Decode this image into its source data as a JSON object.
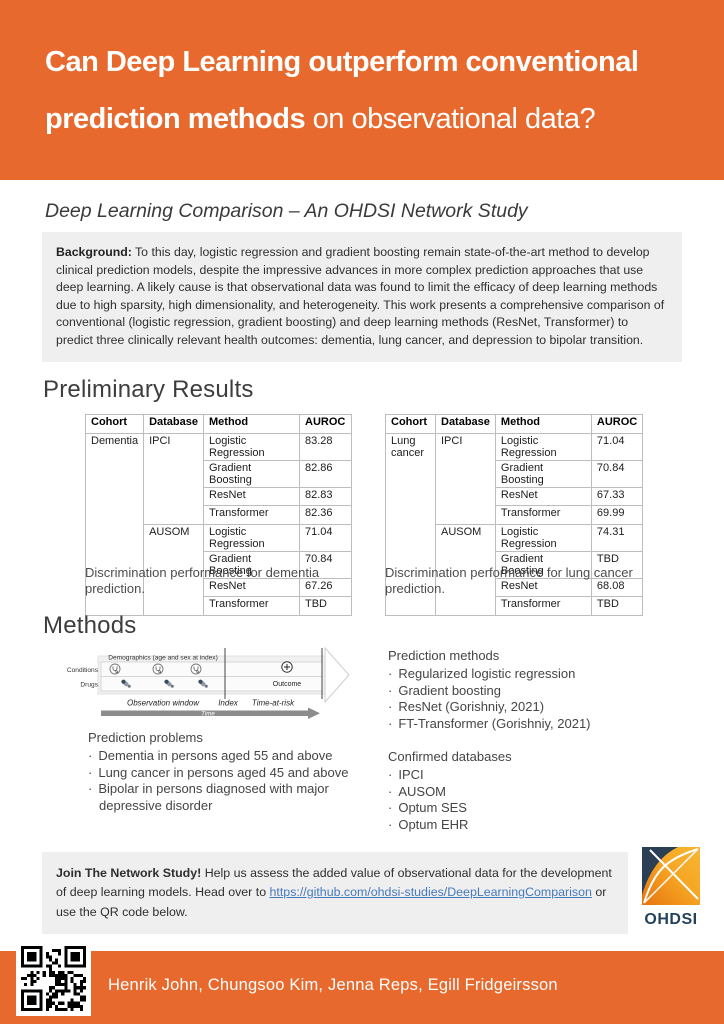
{
  "header": {
    "title_line1": "Can Deep Learning outperform conventional",
    "title_line2_bold": "prediction methods",
    "title_line2_rest": " on observational data?"
  },
  "subtitle": "Deep Learning Comparison – An OHDSI Network Study",
  "background": {
    "label": "Background:",
    "text": " To this day, logistic regression and gradient boosting remain state-of-the-art method to develop clinical prediction models, despite the impressive advances in more complex prediction approaches that use deep learning. A likely cause is that observational data was found to limit the efficacy of deep learning methods due to high sparsity, high dimensionality, and heterogeneity. This work presents a comprehensive comparison of conventional (logistic regression, gradient boosting) and deep learning methods (ResNet, Transformer) to predict three clinically relevant health outcomes: dementia, lung cancer, and depression to bipolar transition."
  },
  "results": {
    "heading": "Preliminary Results",
    "tables": [
      {
        "headers": [
          "Cohort",
          "Database",
          "Method",
          "AUROC"
        ],
        "cohort": "Dementia",
        "groups": [
          {
            "database": "IPCI",
            "rows": [
              [
                "Logistic Regression",
                "83.28"
              ],
              [
                "Gradient Boosting",
                "82.86"
              ],
              [
                "ResNet",
                "82.83"
              ],
              [
                "Transformer",
                "82.36"
              ]
            ]
          },
          {
            "database": "AUSOM",
            "rows": [
              [
                "Logistic Regression",
                "71.04"
              ],
              [
                "Gradient Boosting",
                "70.84"
              ],
              [
                "ResNet",
                "67.26"
              ],
              [
                "Transformer",
                "TBD"
              ]
            ]
          }
        ],
        "caption": "Discrimination performance for dementia prediction."
      },
      {
        "headers": [
          "Cohort",
          "Database",
          "Method",
          "AUROC"
        ],
        "cohort": "Lung cancer",
        "groups": [
          {
            "database": "IPCI",
            "rows": [
              [
                "Logistic Regression",
                "71.04"
              ],
              [
                "Gradient Boosting",
                "70.84"
              ],
              [
                "ResNet",
                "67.33"
              ],
              [
                "Transformer",
                "69.99"
              ]
            ]
          },
          {
            "database": "AUSOM",
            "rows": [
              [
                "Logistic Regression",
                "74.31"
              ],
              [
                "Gradient Boosting",
                "TBD"
              ],
              [
                "ResNet",
                "68.08"
              ],
              [
                "Transformer",
                "TBD"
              ]
            ]
          }
        ],
        "caption": "Discrimination performance for lung cancer prediction."
      }
    ]
  },
  "methods": {
    "heading": "Methods",
    "diagram": {
      "demographics_label": "Demographics (age and sex at index)",
      "conditions_label": "Conditions",
      "drugs_label": "Drugs",
      "outcome_label": "Outcome",
      "observation_window_label": "Observation window",
      "index_label": "Index",
      "time_at_risk_label": "Time-at-risk",
      "time_label": "Time"
    },
    "problems": {
      "heading": "Prediction problems",
      "items": [
        "Dementia in persons aged 55 and above",
        "Lung cancer in persons aged 45 and above",
        "Bipolar in persons diagnosed with major depressive disorder"
      ]
    },
    "prediction_methods": {
      "heading": "Prediction methods",
      "items": [
        "Regularized logistic regression",
        "Gradient boosting",
        "ResNet (Gorishniy, 2021)",
        "FT-Transformer (Gorishniy, 2021)"
      ]
    },
    "databases": {
      "heading": "Confirmed databases",
      "items": [
        "IPCI",
        "AUSOM",
        "Optum SES",
        "Optum EHR"
      ]
    }
  },
  "join": {
    "label": "Join The Network Study!",
    "text_before": " Help us assess the added value of observational data for the development of deep learning models. Head over to ",
    "link": "https://github.com/ohdsi-studies/DeepLearningComparison",
    "text_after": " or use the QR code below."
  },
  "logo": {
    "text": "OHDSI"
  },
  "footer": {
    "authors": "Henrik John, Chungsoo Kim, Jenna Reps, Egill Fridgeirsson"
  },
  "colors": {
    "orange": "#E8692D",
    "navy": "#24425C",
    "link_blue": "#4679BD"
  }
}
